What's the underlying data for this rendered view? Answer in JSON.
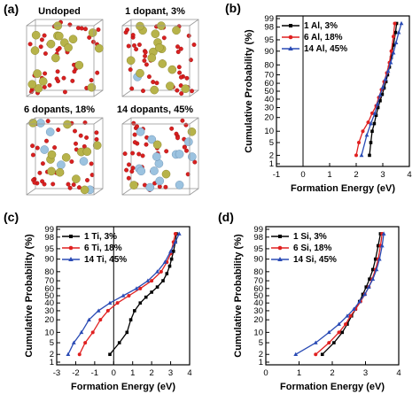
{
  "structures": {
    "panel_label": "(a)",
    "titles": [
      "Undoped",
      "1 dopant, 3%",
      "6 dopants, 18%",
      "14 dopants, 45%"
    ],
    "dopant_counts": [
      0,
      1,
      6,
      14
    ],
    "colors": {
      "large_atom": "#b7b34a",
      "small_atom": "#d92020",
      "dopant": "#9cc3e0",
      "box": "#999999"
    }
  },
  "chart_data": [
    {
      "type": "line",
      "panel_label": "(b)",
      "xlabel": "Formation Energy (eV)",
      "ylabel": "Cumulative Probability (%)",
      "xlim": [
        -1,
        4
      ],
      "xticks": [
        -1,
        0,
        1,
        2,
        3,
        4
      ],
      "yticks": [
        1,
        2,
        5,
        10,
        20,
        30,
        40,
        50,
        60,
        70,
        80,
        90,
        95,
        98,
        99
      ],
      "yscale": "probability",
      "legend": "top-left",
      "series": [
        {
          "name": "1 Al, 3%",
          "color": "#000000",
          "marker": "square",
          "x": [
            2.5,
            2.55,
            2.6,
            2.68,
            2.75,
            2.82,
            2.9,
            2.98,
            3.05,
            3.12,
            3.18,
            3.25,
            3.32,
            3.4,
            3.48,
            3.52
          ],
          "y": [
            2,
            5,
            10,
            15,
            22,
            30,
            38,
            46,
            54,
            62,
            70,
            78,
            86,
            93,
            97,
            98.5
          ]
        },
        {
          "name": "6 Al, 18%",
          "color": "#e02020",
          "marker": "circle",
          "x": [
            2.0,
            2.1,
            2.25,
            2.45,
            2.6,
            2.75,
            2.85,
            2.95,
            3.05,
            3.15,
            3.25,
            3.32,
            3.4,
            3.45
          ],
          "y": [
            2,
            5,
            10,
            16,
            24,
            32,
            42,
            52,
            62,
            72,
            82,
            90,
            96,
            98.5
          ]
        },
        {
          "name": "14 Al, 45%",
          "color": "#2a4bb5",
          "marker": "triangle",
          "x": [
            2.2,
            2.4,
            2.55,
            2.7,
            2.8,
            2.9,
            3.0,
            3.1,
            3.2,
            3.3,
            3.4,
            3.5,
            3.6,
            3.7
          ],
          "y": [
            2,
            8,
            15,
            24,
            34,
            45,
            55,
            65,
            74,
            82,
            89,
            94,
            97,
            98.5
          ]
        }
      ]
    },
    {
      "type": "line",
      "panel_label": "(c)",
      "xlabel": "Formation Energy (eV)",
      "ylabel": "Cumulative Probability (%)",
      "xlim": [
        -3,
        4
      ],
      "xticks": [
        -3,
        -2,
        -1,
        0,
        1,
        2,
        3,
        4
      ],
      "yticks": [
        1,
        2,
        5,
        10,
        20,
        30,
        40,
        50,
        60,
        70,
        80,
        90,
        95,
        98,
        99
      ],
      "yscale": "probability",
      "legend": "top-left",
      "series": [
        {
          "name": "1 Ti, 3%",
          "color": "#000000",
          "marker": "square",
          "x": [
            -0.2,
            0.3,
            0.7,
            0.9,
            1.1,
            1.4,
            1.7,
            2.0,
            2.3,
            2.6,
            2.8,
            2.95,
            3.05,
            3.15,
            3.25,
            3.3
          ],
          "y": [
            2,
            5,
            10,
            20,
            30,
            40,
            48,
            55,
            62,
            70,
            78,
            85,
            90,
            94,
            97,
            98.5
          ]
        },
        {
          "name": "6 Ti, 18%",
          "color": "#e02020",
          "marker": "circle",
          "x": [
            -1.8,
            -1.5,
            -1.1,
            -0.7,
            -0.3,
            0.2,
            0.8,
            1.4,
            2.0,
            2.5,
            2.8,
            3.0,
            3.15,
            3.25
          ],
          "y": [
            2,
            5,
            10,
            20,
            30,
            40,
            50,
            60,
            70,
            80,
            88,
            93,
            97,
            98.5
          ]
        },
        {
          "name": "14 Ti, 45%",
          "color": "#2a4bb5",
          "marker": "triangle",
          "x": [
            -2.4,
            -2.1,
            -1.7,
            -1.3,
            -0.8,
            -0.2,
            0.5,
            1.2,
            1.8,
            2.3,
            2.7,
            3.0,
            3.25,
            3.45
          ],
          "y": [
            2,
            5,
            10,
            20,
            30,
            40,
            50,
            60,
            70,
            80,
            88,
            94,
            97,
            98.5
          ]
        }
      ]
    },
    {
      "type": "line",
      "panel_label": "(d)",
      "xlabel": "Formation Energy (eV)",
      "ylabel": "Cumulative Probability (%)",
      "xlim": [
        0,
        4
      ],
      "xticks": [
        0,
        1,
        2,
        3,
        4
      ],
      "yticks": [
        1,
        2,
        5,
        10,
        20,
        30,
        40,
        50,
        60,
        70,
        80,
        90,
        95,
        98,
        99
      ],
      "yscale": "probability",
      "legend": "top-left",
      "series": [
        {
          "name": "1 Si, 3%",
          "color": "#000000",
          "marker": "square",
          "x": [
            1.7,
            2.05,
            2.3,
            2.45,
            2.58,
            2.7,
            2.82,
            2.92,
            3.02,
            3.12,
            3.22,
            3.3,
            3.38,
            3.45
          ],
          "y": [
            2,
            5,
            10,
            16,
            24,
            32,
            42,
            52,
            62,
            72,
            82,
            90,
            96,
            98.5
          ]
        },
        {
          "name": "6 Si, 18%",
          "color": "#e02020",
          "marker": "circle",
          "x": [
            1.5,
            1.9,
            2.2,
            2.4,
            2.55,
            2.7,
            2.85,
            2.98,
            3.1,
            3.2,
            3.3,
            3.38,
            3.45,
            3.5
          ],
          "y": [
            2,
            5,
            10,
            16,
            24,
            32,
            42,
            52,
            62,
            72,
            82,
            90,
            96,
            98.5
          ]
        },
        {
          "name": "14 Si, 45%",
          "color": "#2a4bb5",
          "marker": "triangle",
          "x": [
            0.9,
            1.5,
            1.9,
            2.2,
            2.45,
            2.65,
            2.82,
            2.98,
            3.1,
            3.22,
            3.33,
            3.42,
            3.5,
            3.55
          ],
          "y": [
            2,
            5,
            10,
            16,
            24,
            32,
            42,
            52,
            62,
            72,
            82,
            90,
            96,
            98.5
          ]
        }
      ]
    }
  ]
}
